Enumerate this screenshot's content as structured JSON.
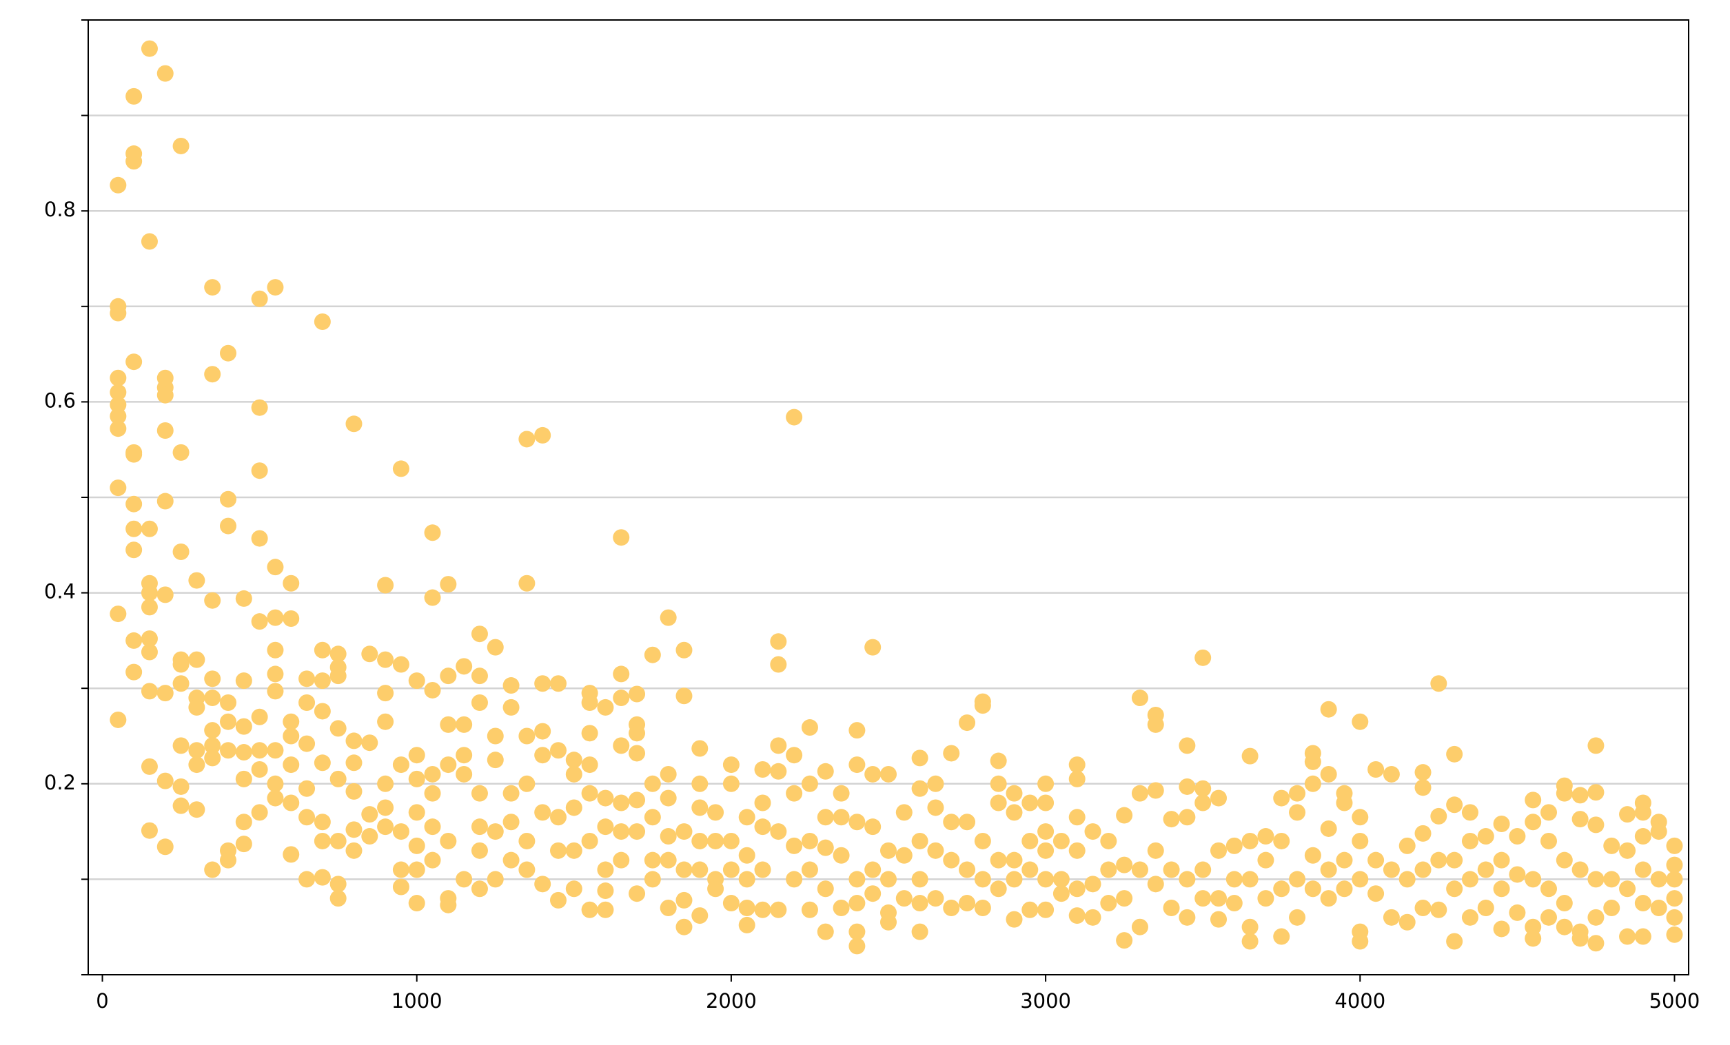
{
  "chart_data": {
    "type": "scatter",
    "color": "#fdcd6b",
    "grid": true,
    "xlim": [
      -45,
      5045
    ],
    "xticks": [
      0,
      1000,
      2000,
      3000,
      4000,
      5000
    ],
    "ylim": [
      0,
      1.0
    ],
    "yticks": [
      {
        "value": 0,
        "label": null
      },
      {
        "value": 0.1,
        "label": null
      },
      0.2,
      {
        "value": 0.3,
        "label": null
      },
      0.4,
      {
        "value": 0.5,
        "label": null
      },
      0.6,
      {
        "value": 0.7,
        "label": null
      },
      0.8,
      {
        "value": 0.9,
        "label": null
      },
      {
        "value": 1.0,
        "label": null
      }
    ],
    "x": [
      50,
      50,
      50,
      50,
      50,
      50,
      50,
      50,
      50,
      50,
      50,
      100,
      100,
      100,
      100,
      100,
      100,
      100,
      100,
      100,
      100,
      100,
      150,
      150,
      150,
      150,
      150,
      150,
      150,
      150,
      150,
      150,
      150,
      200,
      200,
      200,
      200,
      200,
      200,
      200,
      200,
      200,
      200,
      250,
      250,
      250,
      250,
      250,
      250,
      250,
      250,
      250,
      300,
      300,
      300,
      300,
      300,
      300,
      300,
      350,
      350,
      350,
      350,
      350,
      350,
      350,
      350,
      350,
      400,
      400,
      400,
      400,
      400,
      400,
      400,
      400,
      450,
      450,
      450,
      450,
      450,
      450,
      450,
      500,
      500,
      500,
      500,
      500,
      500,
      500,
      500,
      500,
      550,
      550,
      550,
      550,
      550,
      550,
      550,
      550,
      550,
      600,
      600,
      600,
      600,
      600,
      600,
      600,
      650,
      650,
      650,
      650,
      650,
      650,
      700,
      700,
      700,
      700,
      700,
      700,
      700,
      700,
      750,
      750,
      750,
      750,
      750,
      750,
      750,
      750,
      800,
      800,
      800,
      800,
      800,
      800,
      850,
      850,
      850,
      850,
      900,
      900,
      900,
      900,
      900,
      900,
      900,
      950,
      950,
      950,
      950,
      950,
      950,
      1000,
      1000,
      1000,
      1000,
      1000,
      1000,
      1000,
      1050,
      1050,
      1050,
      1050,
      1050,
      1050,
      1050,
      1100,
      1100,
      1100,
      1100,
      1100,
      1100,
      1100,
      1150,
      1150,
      1150,
      1150,
      1150,
      1200,
      1200,
      1200,
      1200,
      1200,
      1200,
      1200,
      1250,
      1250,
      1250,
      1250,
      1250,
      1300,
      1300,
      1300,
      1300,
      1300,
      1350,
      1350,
      1350,
      1350,
      1350,
      1350,
      1400,
      1400,
      1400,
      1400,
      1400,
      1400,
      1450,
      1450,
      1450,
      1450,
      1450,
      1500,
      1500,
      1500,
      1500,
      1500,
      1550,
      1550,
      1550,
      1550,
      1550,
      1550,
      1550,
      1600,
      1600,
      1600,
      1600,
      1600,
      1600,
      1650,
      1650,
      1650,
      1650,
      1650,
      1650,
      1650,
      1700,
      1700,
      1700,
      1700,
      1700,
      1700,
      1700,
      1750,
      1750,
      1750,
      1750,
      1750,
      1800,
      1800,
      1800,
      1800,
      1800,
      1800,
      1850,
      1850,
      1850,
      1850,
      1850,
      1850,
      1900,
      1900,
      1900,
      1900,
      1900,
      1900,
      1950,
      1950,
      1950,
      1950,
      2000,
      2000,
      2000,
      2000,
      2000,
      2050,
      2050,
      2050,
      2050,
      2050,
      2100,
      2100,
      2100,
      2100,
      2100,
      2150,
      2150,
      2150,
      2150,
      2150,
      2150,
      2200,
      2200,
      2200,
      2200,
      2200,
      2250,
      2250,
      2250,
      2250,
      2250,
      2300,
      2300,
      2300,
      2300,
      2300,
      2350,
      2350,
      2350,
      2350,
      2400,
      2400,
      2400,
      2400,
      2400,
      2400,
      2400,
      2450,
      2450,
      2450,
      2450,
      2450,
      2500,
      2500,
      2500,
      2500,
      2500,
      2550,
      2550,
      2550,
      2600,
      2600,
      2600,
      2600,
      2600,
      2600,
      2650,
      2650,
      2650,
      2650,
      2700,
      2700,
      2700,
      2700,
      2750,
      2750,
      2750,
      2750,
      2800,
      2800,
      2800,
      2800,
      2800,
      2850,
      2850,
      2850,
      2850,
      2850,
      2900,
      2900,
      2900,
      2900,
      2900,
      2950,
      2950,
      2950,
      2950,
      3000,
      3000,
      3000,
      3000,
      3000,
      3000,
      3050,
      3050,
      3050,
      3100,
      3100,
      3100,
      3100,
      3100,
      3100,
      3150,
      3150,
      3150,
      3200,
      3200,
      3200,
      3250,
      3250,
      3250,
      3250,
      3300,
      3300,
      3300,
      3300,
      3350,
      3350,
      3350,
      3350,
      3350,
      3400,
      3400,
      3400,
      3450,
      3450,
      3450,
      3450,
      3450,
      3500,
      3500,
      3500,
      3500,
      3500,
      3550,
      3550,
      3550,
      3550,
      3600,
      3600,
      3600,
      3650,
      3650,
      3650,
      3650,
      3650,
      3700,
      3700,
      3700,
      3750,
      3750,
      3750,
      3750,
      3800,
      3800,
      3800,
      3800,
      3850,
      3850,
      3850,
      3850,
      3850,
      3900,
      3900,
      3900,
      3900,
      3900,
      3950,
      3950,
      3950,
      3950,
      4000,
      4000,
      4000,
      4000,
      4000,
      4000,
      4050,
      4050,
      4050,
      4100,
      4100,
      4100,
      4150,
      4150,
      4150,
      4200,
      4200,
      4200,
      4200,
      4200,
      4250,
      4250,
      4250,
      4250,
      4300,
      4300,
      4300,
      4300,
      4300,
      4350,
      4350,
      4350,
      4350,
      4400,
      4400,
      4400,
      4450,
      4450,
      4450,
      4450,
      4500,
      4500,
      4500,
      4550,
      4550,
      4550,
      4550,
      4550,
      4600,
      4600,
      4600,
      4600,
      4650,
      4650,
      4650,
      4650,
      4650,
      4700,
      4700,
      4700,
      4700,
      4700,
      4750,
      4750,
      4750,
      4750,
      4750,
      4750,
      4800,
      4800,
      4800,
      4850,
      4850,
      4850,
      4850,
      4900,
      4900,
      4900,
      4900,
      4900,
      4900,
      4950,
      4950,
      4950,
      4950,
      5000,
      5000,
      5000,
      5000,
      5000,
      5000
    ],
    "values": [
      0.827,
      0.7,
      0.693,
      0.625,
      0.61,
      0.597,
      0.585,
      0.572,
      0.51,
      0.378,
      0.267,
      0.92,
      0.86,
      0.852,
      0.642,
      0.547,
      0.545,
      0.493,
      0.467,
      0.445,
      0.35,
      0.317,
      0.97,
      0.768,
      0.467,
      0.41,
      0.4,
      0.385,
      0.352,
      0.338,
      0.297,
      0.218,
      0.151,
      0.944,
      0.625,
      0.615,
      0.607,
      0.57,
      0.496,
      0.398,
      0.295,
      0.203,
      0.134,
      0.868,
      0.547,
      0.443,
      0.33,
      0.325,
      0.305,
      0.24,
      0.197,
      0.177,
      0.413,
      0.33,
      0.29,
      0.28,
      0.235,
      0.22,
      0.173,
      0.72,
      0.629,
      0.392,
      0.31,
      0.29,
      0.256,
      0.24,
      0.227,
      0.11,
      0.651,
      0.498,
      0.47,
      0.285,
      0.265,
      0.235,
      0.13,
      0.12,
      0.394,
      0.308,
      0.26,
      0.233,
      0.205,
      0.16,
      0.137,
      0.708,
      0.594,
      0.528,
      0.457,
      0.37,
      0.27,
      0.235,
      0.215,
      0.17,
      0.72,
      0.427,
      0.374,
      0.34,
      0.315,
      0.297,
      0.235,
      0.2,
      0.185,
      0.41,
      0.373,
      0.265,
      0.25,
      0.22,
      0.18,
      0.126,
      0.31,
      0.285,
      0.242,
      0.195,
      0.165,
      0.1,
      0.684,
      0.34,
      0.308,
      0.276,
      0.222,
      0.16,
      0.14,
      0.102,
      0.336,
      0.322,
      0.313,
      0.258,
      0.205,
      0.14,
      0.095,
      0.08,
      0.577,
      0.245,
      0.222,
      0.192,
      0.152,
      0.13,
      0.336,
      0.243,
      0.168,
      0.145,
      0.408,
      0.33,
      0.295,
      0.265,
      0.2,
      0.175,
      0.155,
      0.53,
      0.325,
      0.22,
      0.15,
      0.11,
      0.092,
      0.308,
      0.23,
      0.205,
      0.17,
      0.135,
      0.11,
      0.075,
      0.463,
      0.395,
      0.298,
      0.21,
      0.19,
      0.155,
      0.12,
      0.409,
      0.313,
      0.262,
      0.22,
      0.14,
      0.08,
      0.073,
      0.323,
      0.262,
      0.23,
      0.21,
      0.1,
      0.357,
      0.313,
      0.285,
      0.19,
      0.155,
      0.13,
      0.09,
      0.343,
      0.25,
      0.225,
      0.15,
      0.1,
      0.303,
      0.28,
      0.19,
      0.16,
      0.12,
      0.561,
      0.41,
      0.25,
      0.2,
      0.14,
      0.11,
      0.565,
      0.305,
      0.255,
      0.23,
      0.17,
      0.095,
      0.305,
      0.235,
      0.165,
      0.13,
      0.078,
      0.225,
      0.21,
      0.175,
      0.13,
      0.09,
      0.295,
      0.285,
      0.253,
      0.22,
      0.19,
      0.14,
      0.068,
      0.28,
      0.185,
      0.155,
      0.11,
      0.088,
      0.068,
      0.458,
      0.315,
      0.29,
      0.24,
      0.18,
      0.15,
      0.12,
      0.294,
      0.262,
      0.253,
      0.232,
      0.183,
      0.15,
      0.085,
      0.335,
      0.2,
      0.165,
      0.12,
      0.1,
      0.374,
      0.21,
      0.185,
      0.145,
      0.12,
      0.07,
      0.34,
      0.292,
      0.15,
      0.11,
      0.078,
      0.05,
      0.237,
      0.2,
      0.175,
      0.14,
      0.11,
      0.062,
      0.17,
      0.14,
      0.1,
      0.09,
      0.22,
      0.2,
      0.14,
      0.11,
      0.075,
      0.165,
      0.125,
      0.1,
      0.07,
      0.052,
      0.215,
      0.18,
      0.155,
      0.11,
      0.068,
      0.349,
      0.325,
      0.24,
      0.213,
      0.15,
      0.068,
      0.584,
      0.23,
      0.19,
      0.135,
      0.1,
      0.259,
      0.2,
      0.14,
      0.11,
      0.068,
      0.213,
      0.165,
      0.133,
      0.09,
      0.045,
      0.19,
      0.165,
      0.125,
      0.07,
      0.256,
      0.22,
      0.16,
      0.1,
      0.075,
      0.045,
      0.03,
      0.343,
      0.21,
      0.155,
      0.11,
      0.085,
      0.21,
      0.13,
      0.1,
      0.065,
      0.055,
      0.17,
      0.125,
      0.08,
      0.227,
      0.195,
      0.14,
      0.1,
      0.075,
      0.045,
      0.2,
      0.175,
      0.13,
      0.08,
      0.232,
      0.16,
      0.12,
      0.07,
      0.264,
      0.16,
      0.11,
      0.075,
      0.286,
      0.282,
      0.14,
      0.1,
      0.07,
      0.224,
      0.2,
      0.18,
      0.12,
      0.09,
      0.19,
      0.17,
      0.12,
      0.1,
      0.058,
      0.18,
      0.14,
      0.11,
      0.068,
      0.2,
      0.18,
      0.15,
      0.13,
      0.1,
      0.068,
      0.14,
      0.1,
      0.085,
      0.22,
      0.205,
      0.165,
      0.13,
      0.09,
      0.062,
      0.15,
      0.095,
      0.06,
      0.14,
      0.11,
      0.075,
      0.167,
      0.115,
      0.08,
      0.036,
      0.29,
      0.19,
      0.11,
      0.05,
      0.272,
      0.262,
      0.193,
      0.13,
      0.095,
      0.163,
      0.11,
      0.07,
      0.24,
      0.197,
      0.165,
      0.1,
      0.06,
      0.332,
      0.195,
      0.18,
      0.11,
      0.08,
      0.185,
      0.13,
      0.08,
      0.058,
      0.135,
      0.1,
      0.075,
      0.229,
      0.14,
      0.1,
      0.05,
      0.035,
      0.145,
      0.12,
      0.08,
      0.185,
      0.14,
      0.09,
      0.04,
      0.19,
      0.17,
      0.1,
      0.06,
      0.232,
      0.223,
      0.2,
      0.125,
      0.09,
      0.278,
      0.21,
      0.153,
      0.11,
      0.08,
      0.19,
      0.18,
      0.12,
      0.09,
      0.265,
      0.165,
      0.14,
      0.1,
      0.045,
      0.035,
      0.215,
      0.12,
      0.085,
      0.21,
      0.11,
      0.06,
      0.135,
      0.1,
      0.055,
      0.212,
      0.196,
      0.148,
      0.11,
      0.07,
      0.305,
      0.166,
      0.12,
      0.068,
      0.231,
      0.178,
      0.12,
      0.09,
      0.035,
      0.17,
      0.14,
      0.1,
      0.06,
      0.145,
      0.11,
      0.07,
      0.158,
      0.12,
      0.09,
      0.048,
      0.145,
      0.105,
      0.065,
      0.183,
      0.16,
      0.1,
      0.05,
      0.038,
      0.17,
      0.14,
      0.09,
      0.06,
      0.198,
      0.19,
      0.12,
      0.075,
      0.05,
      0.188,
      0.163,
      0.11,
      0.045,
      0.038,
      0.24,
      0.191,
      0.157,
      0.1,
      0.06,
      0.033,
      0.135,
      0.1,
      0.07,
      0.168,
      0.13,
      0.09,
      0.04,
      0.18,
      0.17,
      0.145,
      0.11,
      0.075,
      0.04,
      0.16,
      0.15,
      0.1,
      0.07,
      0.135,
      0.115,
      0.1,
      0.08,
      0.06,
      0.042
    ]
  }
}
